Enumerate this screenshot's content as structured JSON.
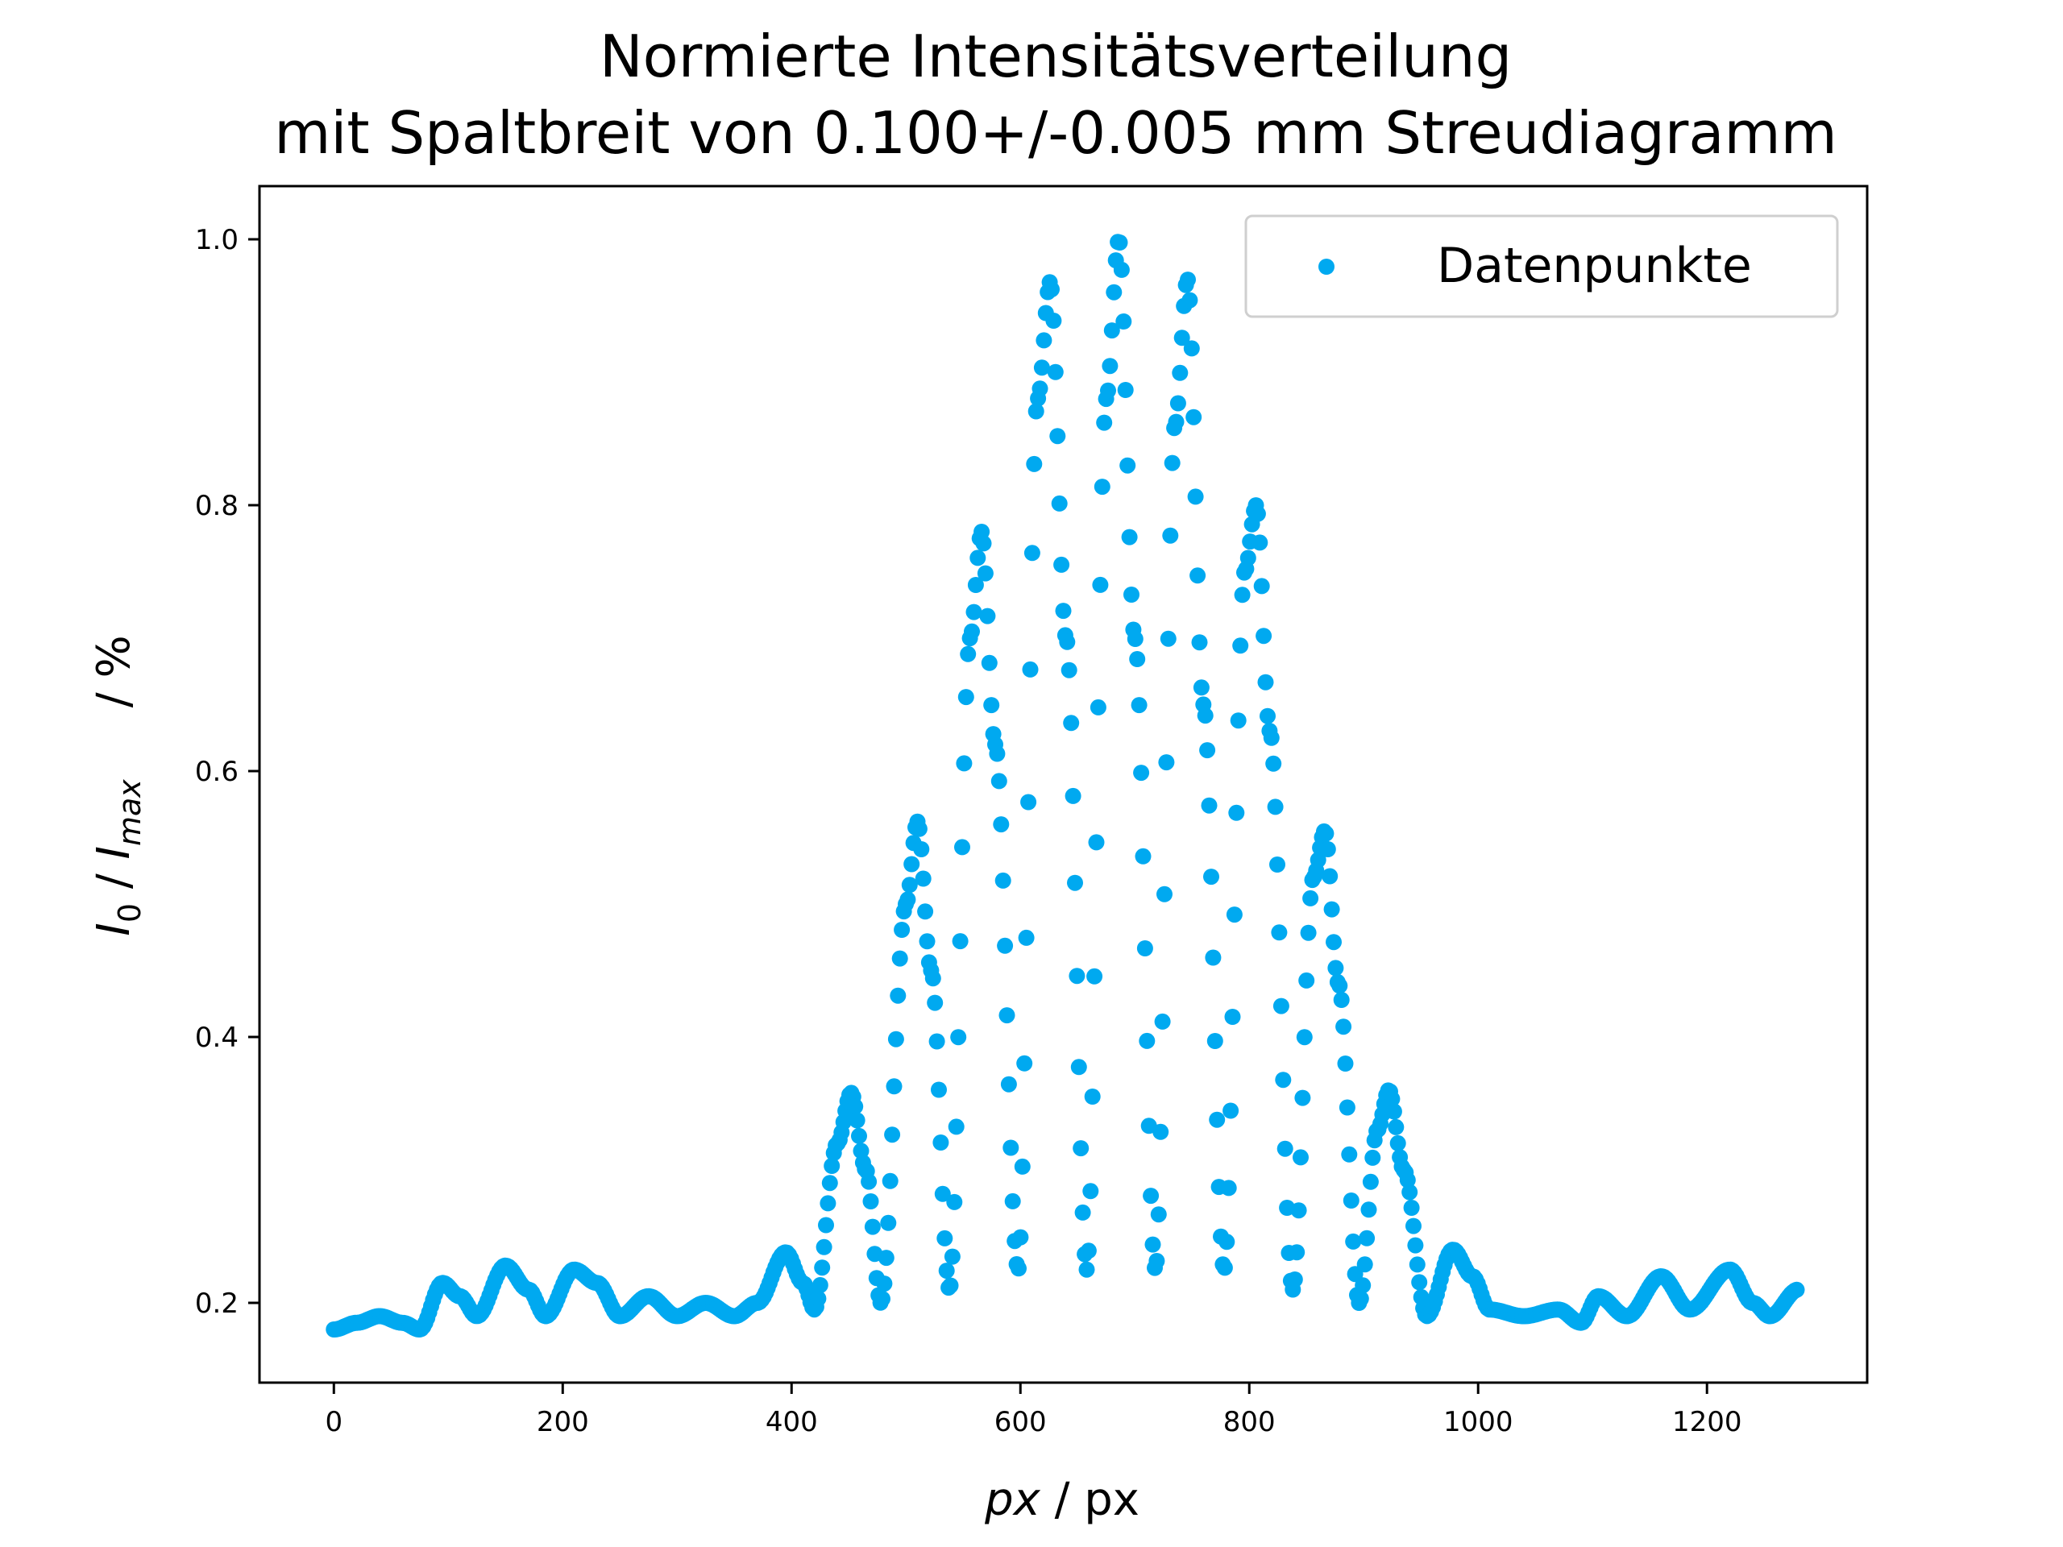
{
  "chart_data": {
    "type": "scatter",
    "title": "Normierte Intensitätsverteilung",
    "subtitle": "mit Spaltbreit von 0.100+/-0.005 mm Streudiagramm",
    "xlabel": "px / px",
    "ylabel": "I0 / Imax    / %",
    "xlim": [
      -65,
      1340
    ],
    "ylim": [
      0.14,
      1.04
    ],
    "xticks": [
      "0",
      "200",
      "400",
      "600",
      "800",
      "1000",
      "1200"
    ],
    "yticks": [
      "0.2",
      "0.4",
      "0.6",
      "0.8",
      "1.0"
    ],
    "grid": false,
    "legend_position": "top-right",
    "marker_color": "#00a9f0",
    "series": [
      {
        "name": "Datenpunkte",
        "profile": {
          "x_range": [
            0,
            1280
          ],
          "points": [
            [
              0,
              0.18
            ],
            [
              20,
              0.185
            ],
            [
              40,
              0.19
            ],
            [
              60,
              0.185
            ],
            [
              75,
              0.18
            ],
            [
              95,
              0.215
            ],
            [
              110,
              0.205
            ],
            [
              125,
              0.19
            ],
            [
              150,
              0.228
            ],
            [
              170,
              0.21
            ],
            [
              185,
              0.19
            ],
            [
              210,
              0.225
            ],
            [
              230,
              0.215
            ],
            [
              250,
              0.19
            ],
            [
              275,
              0.205
            ],
            [
              300,
              0.19
            ],
            [
              325,
              0.2
            ],
            [
              350,
              0.19
            ],
            [
              370,
              0.2
            ],
            [
              395,
              0.238
            ],
            [
              410,
              0.215
            ],
            [
              420,
              0.195
            ],
            [
              440,
              0.32
            ],
            [
              452,
              0.358
            ],
            [
              465,
              0.3
            ],
            [
              478,
              0.2
            ],
            [
              500,
              0.5
            ],
            [
              510,
              0.562
            ],
            [
              522,
              0.45
            ],
            [
              538,
              0.21
            ],
            [
              556,
              0.7
            ],
            [
              566,
              0.78
            ],
            [
              578,
              0.62
            ],
            [
              598,
              0.225
            ],
            [
              615,
              0.88
            ],
            [
              626,
              0.968
            ],
            [
              640,
              0.7
            ],
            [
              658,
              0.225
            ],
            [
              675,
              0.88
            ],
            [
              686,
              1.0
            ],
            [
              700,
              0.7
            ],
            [
              718,
              0.225
            ],
            [
              735,
              0.86
            ],
            [
              746,
              0.97
            ],
            [
              760,
              0.65
            ],
            [
              778,
              0.225
            ],
            [
              796,
              0.75
            ],
            [
              806,
              0.8
            ],
            [
              818,
              0.63
            ],
            [
              838,
              0.21
            ],
            [
              856,
              0.52
            ],
            [
              866,
              0.555
            ],
            [
              878,
              0.44
            ],
            [
              896,
              0.2
            ],
            [
              912,
              0.33
            ],
            [
              922,
              0.36
            ],
            [
              935,
              0.3
            ],
            [
              955,
              0.19
            ],
            [
              978,
              0.24
            ],
            [
              995,
              0.22
            ],
            [
              1010,
              0.195
            ],
            [
              1040,
              0.19
            ],
            [
              1070,
              0.195
            ],
            [
              1090,
              0.185
            ],
            [
              1105,
              0.205
            ],
            [
              1130,
              0.19
            ],
            [
              1160,
              0.22
            ],
            [
              1185,
              0.195
            ],
            [
              1220,
              0.225
            ],
            [
              1240,
              0.2
            ],
            [
              1255,
              0.19
            ],
            [
              1280,
              0.21
            ]
          ]
        }
      }
    ]
  }
}
